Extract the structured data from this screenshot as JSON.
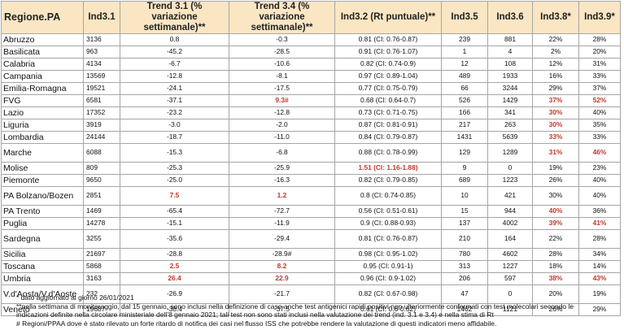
{
  "headers": {
    "region": "Regione.PA",
    "ind31": "Ind3.1",
    "trend31": "Trend 3.1 (% variazione settimanale)**",
    "trend34": "Trend 3.4 (% variazione settimanale)**",
    "ind32": "Ind3.2 (Rt puntuale)**",
    "ind35": "Ind3.5",
    "ind36": "Ind3.6",
    "ind38": "Ind3.8*",
    "ind39": "Ind3.9*"
  },
  "rows": [
    {
      "region": "Abruzzo",
      "ind31": "3136",
      "trend31": "0.8",
      "trend34": "-0.3",
      "ind32": "0.81 (CI: 0.76-0.87)",
      "ind35": "239",
      "ind36": "881",
      "ind38": "22%",
      "ind39": "28%",
      "hl": []
    },
    {
      "region": "Basilicata",
      "ind31": "963",
      "trend31": "-45.2",
      "trend34": "-28.5",
      "ind32": "0.91 (CI: 0.76-1.07)",
      "ind35": "1",
      "ind36": "4",
      "ind38": "2%",
      "ind39": "20%",
      "hl": []
    },
    {
      "region": "Calabria",
      "ind31": "4134",
      "trend31": "-6.7",
      "trend34": "-10.6",
      "ind32": "0.82 (CI: 0.74-0.9)",
      "ind35": "12",
      "ind36": "108",
      "ind38": "12%",
      "ind39": "31%",
      "hl": []
    },
    {
      "region": "Campania",
      "ind31": "13569",
      "trend31": "-12.8",
      "trend34": "-8.1",
      "ind32": "0.97 (CI: 0.89-1.04)",
      "ind35": "489",
      "ind36": "1933",
      "ind38": "16%",
      "ind39": "33%",
      "hl": []
    },
    {
      "region": "Emilia-Romagna",
      "ind31": "19521",
      "trend31": "-24.1",
      "trend34": "-17.5",
      "ind32": "0.77 (CI: 0.75-0.79)",
      "ind35": "66",
      "ind36": "3244",
      "ind38": "29%",
      "ind39": "37%",
      "hl": []
    },
    {
      "region": "FVG",
      "ind31": "6581",
      "trend31": "-37.1",
      "trend34": "9.3#",
      "ind32": "0.68 (CI: 0.64-0.7)",
      "ind35": "526",
      "ind36": "1429",
      "ind38": "37%",
      "ind39": "52%",
      "hl": [
        "trend34",
        "ind38",
        "ind39"
      ]
    },
    {
      "region": "Lazio",
      "ind31": "17352",
      "trend31": "-23.2",
      "trend34": "-12.8",
      "ind32": "0.73 (CI: 0.71-0.75)",
      "ind35": "166",
      "ind36": "341",
      "ind38": "30%",
      "ind39": "40%",
      "hl": [
        "ind38"
      ]
    },
    {
      "region": "Liguria",
      "ind31": "3919",
      "trend31": "-3.0",
      "trend34": "-2.0",
      "ind32": "0.87 (CI: 0.81-0.91)",
      "ind35": "217",
      "ind36": "263",
      "ind38": "30%",
      "ind39": "35%",
      "hl": [
        "ind38"
      ]
    },
    {
      "region": "Lombardia",
      "ind31": "24144",
      "trend31": "-18.7",
      "trend34": "-11.0",
      "ind32": "0.84 (CI: 0.79-0.87)",
      "ind35": "1431",
      "ind36": "5639",
      "ind38": "33%",
      "ind39": "33%",
      "hl": [
        "ind38"
      ]
    },
    {
      "region": "Marche",
      "ind31": "6088",
      "trend31": "-15.3",
      "trend34": "-6.8",
      "ind32": "0.88 (CI: 0.78-0.99)",
      "ind35": "129",
      "ind36": "1289",
      "ind38": "31%",
      "ind39": "46%",
      "hl": [
        "ind38",
        "ind39"
      ],
      "tall": true
    },
    {
      "region": "Molise",
      "ind31": "809",
      "trend31": "-25.3",
      "trend34": "-25.9",
      "ind32": "1.51 (CI: 1.16-1.88)",
      "ind35": "9",
      "ind36": "0",
      "ind38": "19%",
      "ind39": "23%",
      "hl": [
        "ind32"
      ]
    },
    {
      "region": "Piemonte",
      "ind31": "9650",
      "trend31": "-25.0",
      "trend34": "-16.3",
      "ind32": "0.82 (CI: 0.79-0.85)",
      "ind35": "689",
      "ind36": "1223",
      "ind38": "26%",
      "ind39": "40%",
      "hl": []
    },
    {
      "region": "PA Bolzano/Bozen",
      "ind31": "2851",
      "trend31": "7.5",
      "trend34": "1.2",
      "ind32": "0.8 (CI: 0.74-0.85)",
      "ind35": "10",
      "ind36": "421",
      "ind38": "30%",
      "ind39": "40%",
      "hl": [
        "trend31",
        "trend34"
      ],
      "tall": true
    },
    {
      "region": "PA Trento",
      "ind31": "1469",
      "trend31": "-65.4",
      "trend34": "-72.7",
      "ind32": "0.56 (CI: 0.51-0.61)",
      "ind35": "15",
      "ind36": "944",
      "ind38": "40%",
      "ind39": "36%",
      "hl": [
        "ind38"
      ]
    },
    {
      "region": "Puglia",
      "ind31": "14278",
      "trend31": "-15.1",
      "trend34": "-11.9",
      "ind32": "0.9 (CI: 0.88-0.93)",
      "ind35": "137",
      "ind36": "4002",
      "ind38": "39%",
      "ind39": "41%",
      "hl": [
        "ind38",
        "ind39"
      ]
    },
    {
      "region": "Sardegna",
      "ind31": "3255",
      "trend31": "-35.6",
      "trend34": "-29.4",
      "ind32": "0.81 (CI: 0.76-0.87)",
      "ind35": "210",
      "ind36": "164",
      "ind38": "22%",
      "ind39": "28%",
      "hl": [],
      "tall": true
    },
    {
      "region": "Sicilia",
      "ind31": "21697",
      "trend31": "-28.8",
      "trend34": "-28.9#",
      "ind32": "0.98 (CI: 0.95-1.02)",
      "ind35": "780",
      "ind36": "4602",
      "ind38": "28%",
      "ind39": "34%",
      "hl": []
    },
    {
      "region": "Toscana",
      "ind31": "5868",
      "trend31": "2.5",
      "trend34": "8.2",
      "ind32": "0.95 (CI: 0.91-1)",
      "ind35": "313",
      "ind36": "1227",
      "ind38": "18%",
      "ind39": "14%",
      "hl": [
        "trend31",
        "trend34"
      ]
    },
    {
      "region": "Umbria",
      "ind31": "3163",
      "trend31": "26.4",
      "trend34": "22.9",
      "ind32": "0.96 (CI: 0.9-1.02)",
      "ind35": "206",
      "ind36": "597",
      "ind38": "38%",
      "ind39": "43%",
      "hl": [
        "trend31",
        "trend34",
        "ind38",
        "ind39"
      ]
    },
    {
      "region": "V.d'Aosta/V.d'Aoste",
      "ind31": "232",
      "trend31": "-26.9",
      "trend34": "-21.7",
      "ind32": "0.82 (CI: 0.67-0.98)",
      "ind35": "47",
      "ind36": "0",
      "ind38": "20%",
      "ind39": "19%",
      "hl": [],
      "tall": true
    },
    {
      "region": "Veneto",
      "ind31": "19687",
      "trend31": "-38.4",
      "trend34": "-37.5",
      "ind32": "0.61 (CI: 0.6-0.62)",
      "ind35": "1462",
      "ind36": "1121",
      "ind38": "26%",
      "ind39": "29%",
      "hl": []
    }
  ],
  "notes": [
    "* dato aggiornato al giorno 26/01/2021",
    "**nella settimana di monitoraggio, dal 15 gennaio, sono inclusi nella definizione di caso anche test antigenici rapidi positivi non ulteriormente confermati con test molecolari secondo le",
    "indicazioni definite nella circolare ministeriale dell’8 gennaio 2021; tali test non sono stati inclusi nella valutazione dei trend (ind. 3.1 e 3.4) e nella stima di Rt",
    "# Regioni/PPAA dove è stato rilevato un forte ritardo di notifica dei casi nel flusso ISS che potrebbe rendere la valutazione di questi indicatori meno affidabile."
  ],
  "colors": {
    "header_bg": "#fbe6c4",
    "highlight": "#c0392b"
  }
}
